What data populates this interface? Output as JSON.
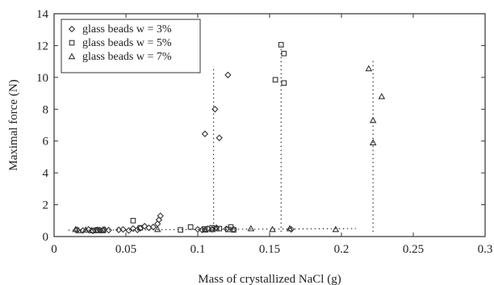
{
  "chart_data": {
    "type": "scatter",
    "title": "",
    "xlabel": "Mass of crystallized NaCl (g)",
    "ylabel": "Maximal force (N)",
    "xlim": [
      0,
      0.3
    ],
    "ylim": [
      0,
      14
    ],
    "x_ticks": [
      "0",
      "0.05",
      "0.1",
      "0.15",
      "0.2",
      "0.25",
      "0.3"
    ],
    "y_ticks": [
      "0",
      "2",
      "4",
      "6",
      "8",
      "10",
      "12",
      "14"
    ],
    "grid": false,
    "legend_position": "top-left",
    "series": [
      {
        "name": "glass beads w = 3%",
        "marker": "diamond",
        "points": [
          [
            0.016,
            0.42
          ],
          [
            0.02,
            0.38
          ],
          [
            0.024,
            0.45
          ],
          [
            0.027,
            0.36
          ],
          [
            0.03,
            0.42
          ],
          [
            0.032,
            0.4
          ],
          [
            0.035,
            0.45
          ],
          [
            0.038,
            0.4
          ],
          [
            0.045,
            0.42
          ],
          [
            0.048,
            0.45
          ],
          [
            0.052,
            0.38
          ],
          [
            0.055,
            0.5
          ],
          [
            0.058,
            0.42
          ],
          [
            0.06,
            0.52
          ],
          [
            0.063,
            0.65
          ],
          [
            0.066,
            0.55
          ],
          [
            0.069,
            0.6
          ],
          [
            0.072,
            0.8
          ],
          [
            0.073,
            1.05
          ],
          [
            0.074,
            1.3
          ],
          [
            0.1,
            0.45
          ],
          [
            0.103,
            0.42
          ],
          [
            0.107,
            0.5
          ],
          [
            0.11,
            0.45
          ],
          [
            0.113,
            0.55
          ],
          [
            0.12,
            0.48
          ],
          [
            0.125,
            0.45
          ],
          [
            0.165,
            0.45
          ],
          [
            0.105,
            6.45
          ],
          [
            0.112,
            8.0
          ],
          [
            0.115,
            6.2
          ],
          [
            0.121,
            10.15
          ]
        ]
      },
      {
        "name": "glass beads w = 5%",
        "marker": "square",
        "points": [
          [
            0.027,
            0.38
          ],
          [
            0.03,
            0.42
          ],
          [
            0.034,
            0.38
          ],
          [
            0.055,
            1.0
          ],
          [
            0.06,
            0.55
          ],
          [
            0.088,
            0.42
          ],
          [
            0.095,
            0.6
          ],
          [
            0.105,
            0.48
          ],
          [
            0.11,
            0.55
          ],
          [
            0.115,
            0.5
          ],
          [
            0.121,
            0.45
          ],
          [
            0.123,
            0.6
          ],
          [
            0.125,
            0.42
          ],
          [
            0.154,
            9.85
          ],
          [
            0.158,
            12.05
          ],
          [
            0.16,
            11.5
          ],
          [
            0.16,
            9.65
          ]
        ]
      },
      {
        "name": "glass beads w = 7%",
        "marker": "triangle",
        "points": [
          [
            0.015,
            0.45
          ],
          [
            0.017,
            0.38
          ],
          [
            0.022,
            0.42
          ],
          [
            0.026,
            0.38
          ],
          [
            0.03,
            0.38
          ],
          [
            0.034,
            0.42
          ],
          [
            0.072,
            0.45
          ],
          [
            0.105,
            0.42
          ],
          [
            0.11,
            0.45
          ],
          [
            0.113,
            0.5
          ],
          [
            0.137,
            0.5
          ],
          [
            0.152,
            0.45
          ],
          [
            0.164,
            0.5
          ],
          [
            0.196,
            0.45
          ],
          [
            0.219,
            10.55
          ],
          [
            0.222,
            7.3
          ],
          [
            0.222,
            5.9
          ],
          [
            0.228,
            8.8
          ]
        ]
      }
    ],
    "guide_lines": {
      "baseline": [
        [
          0.01,
          0.4
        ],
        [
          0.21,
          0.5
        ]
      ],
      "verticals": [
        {
          "x": 0.111,
          "y_from": 0.3,
          "y_to": 10.7
        },
        {
          "x": 0.158,
          "y_from": 0.3,
          "y_to": 12.0
        },
        {
          "x": 0.222,
          "y_from": 0.3,
          "y_to": 11.1
        }
      ]
    }
  }
}
